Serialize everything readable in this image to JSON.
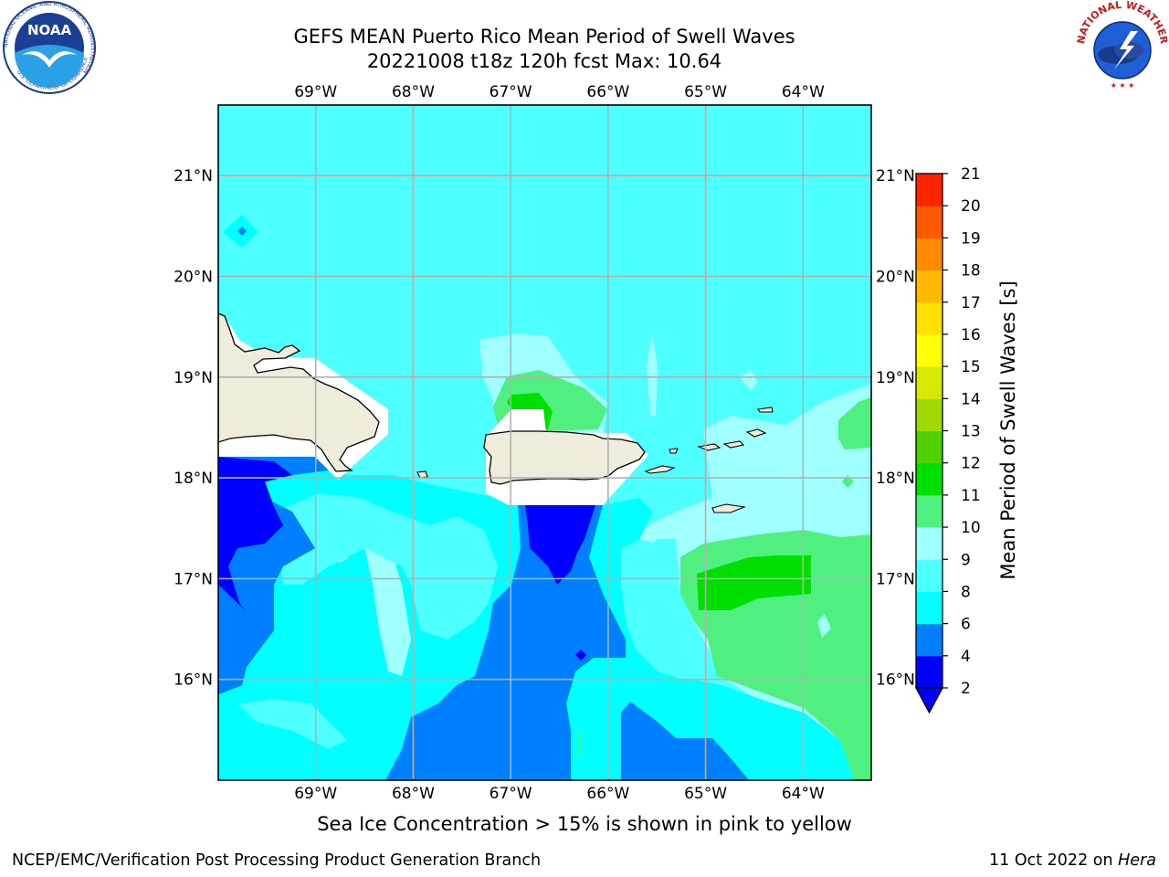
{
  "header": {
    "title_line1": "GEFS MEAN Puerto Rico Mean Period of Swell Waves",
    "title_line2": "20221008 t18z 120h fcst   Max: 10.64"
  },
  "map": {
    "lon_labels": [
      "69°W",
      "68°W",
      "67°W",
      "66°W",
      "65°W",
      "64°W"
    ],
    "lon_values": [
      -69,
      -68,
      -67,
      -66,
      -65,
      -64
    ],
    "lat_labels": [
      "21°N",
      "20°N",
      "19°N",
      "18°N",
      "17°N",
      "16°N"
    ],
    "lat_values": [
      21,
      20,
      19,
      18,
      17,
      16
    ],
    "extent": {
      "lon": [
        -70,
        -63.3
      ],
      "lat": [
        15.0,
        21.7
      ]
    },
    "land_color": "#efecdc",
    "grid": true
  },
  "colorbar": {
    "title": "Mean Period of Swell Waves [s]",
    "ticks": [
      "2",
      "4",
      "6",
      "8",
      "9",
      "10",
      "11",
      "12",
      "13",
      "14",
      "15",
      "16",
      "17",
      "18",
      "19",
      "20",
      "21"
    ],
    "colors": [
      "#0000ff",
      "#0080ff",
      "#00ffff",
      "#4dffff",
      "#a0ffff",
      "#50f080",
      "#00e000",
      "#50d000",
      "#a0d800",
      "#d8e800",
      "#ffff00",
      "#ffe000",
      "#ffb800",
      "#ff8c00",
      "#ff5a00",
      "#ff2400"
    ],
    "extend": "min"
  },
  "footer": {
    "note": "Sea Ice Concentration > 15% is shown in pink to yellow",
    "left": "NCEP/EMC/Verification Post Processing Product Generation Branch",
    "right_date": "11 Oct 2022 on ",
    "right_machine": "Hera"
  },
  "logos": {
    "noaa_text": "NOAA",
    "noaa_ring": "NATIONAL OCEANIC AND ATMOSPHERIC ADMINISTRATION",
    "noaa_ring_bottom": "U.S. DEPARTMENT OF COMMERCE",
    "nws_ring": "NATIONAL WEATHER SERVICE"
  }
}
